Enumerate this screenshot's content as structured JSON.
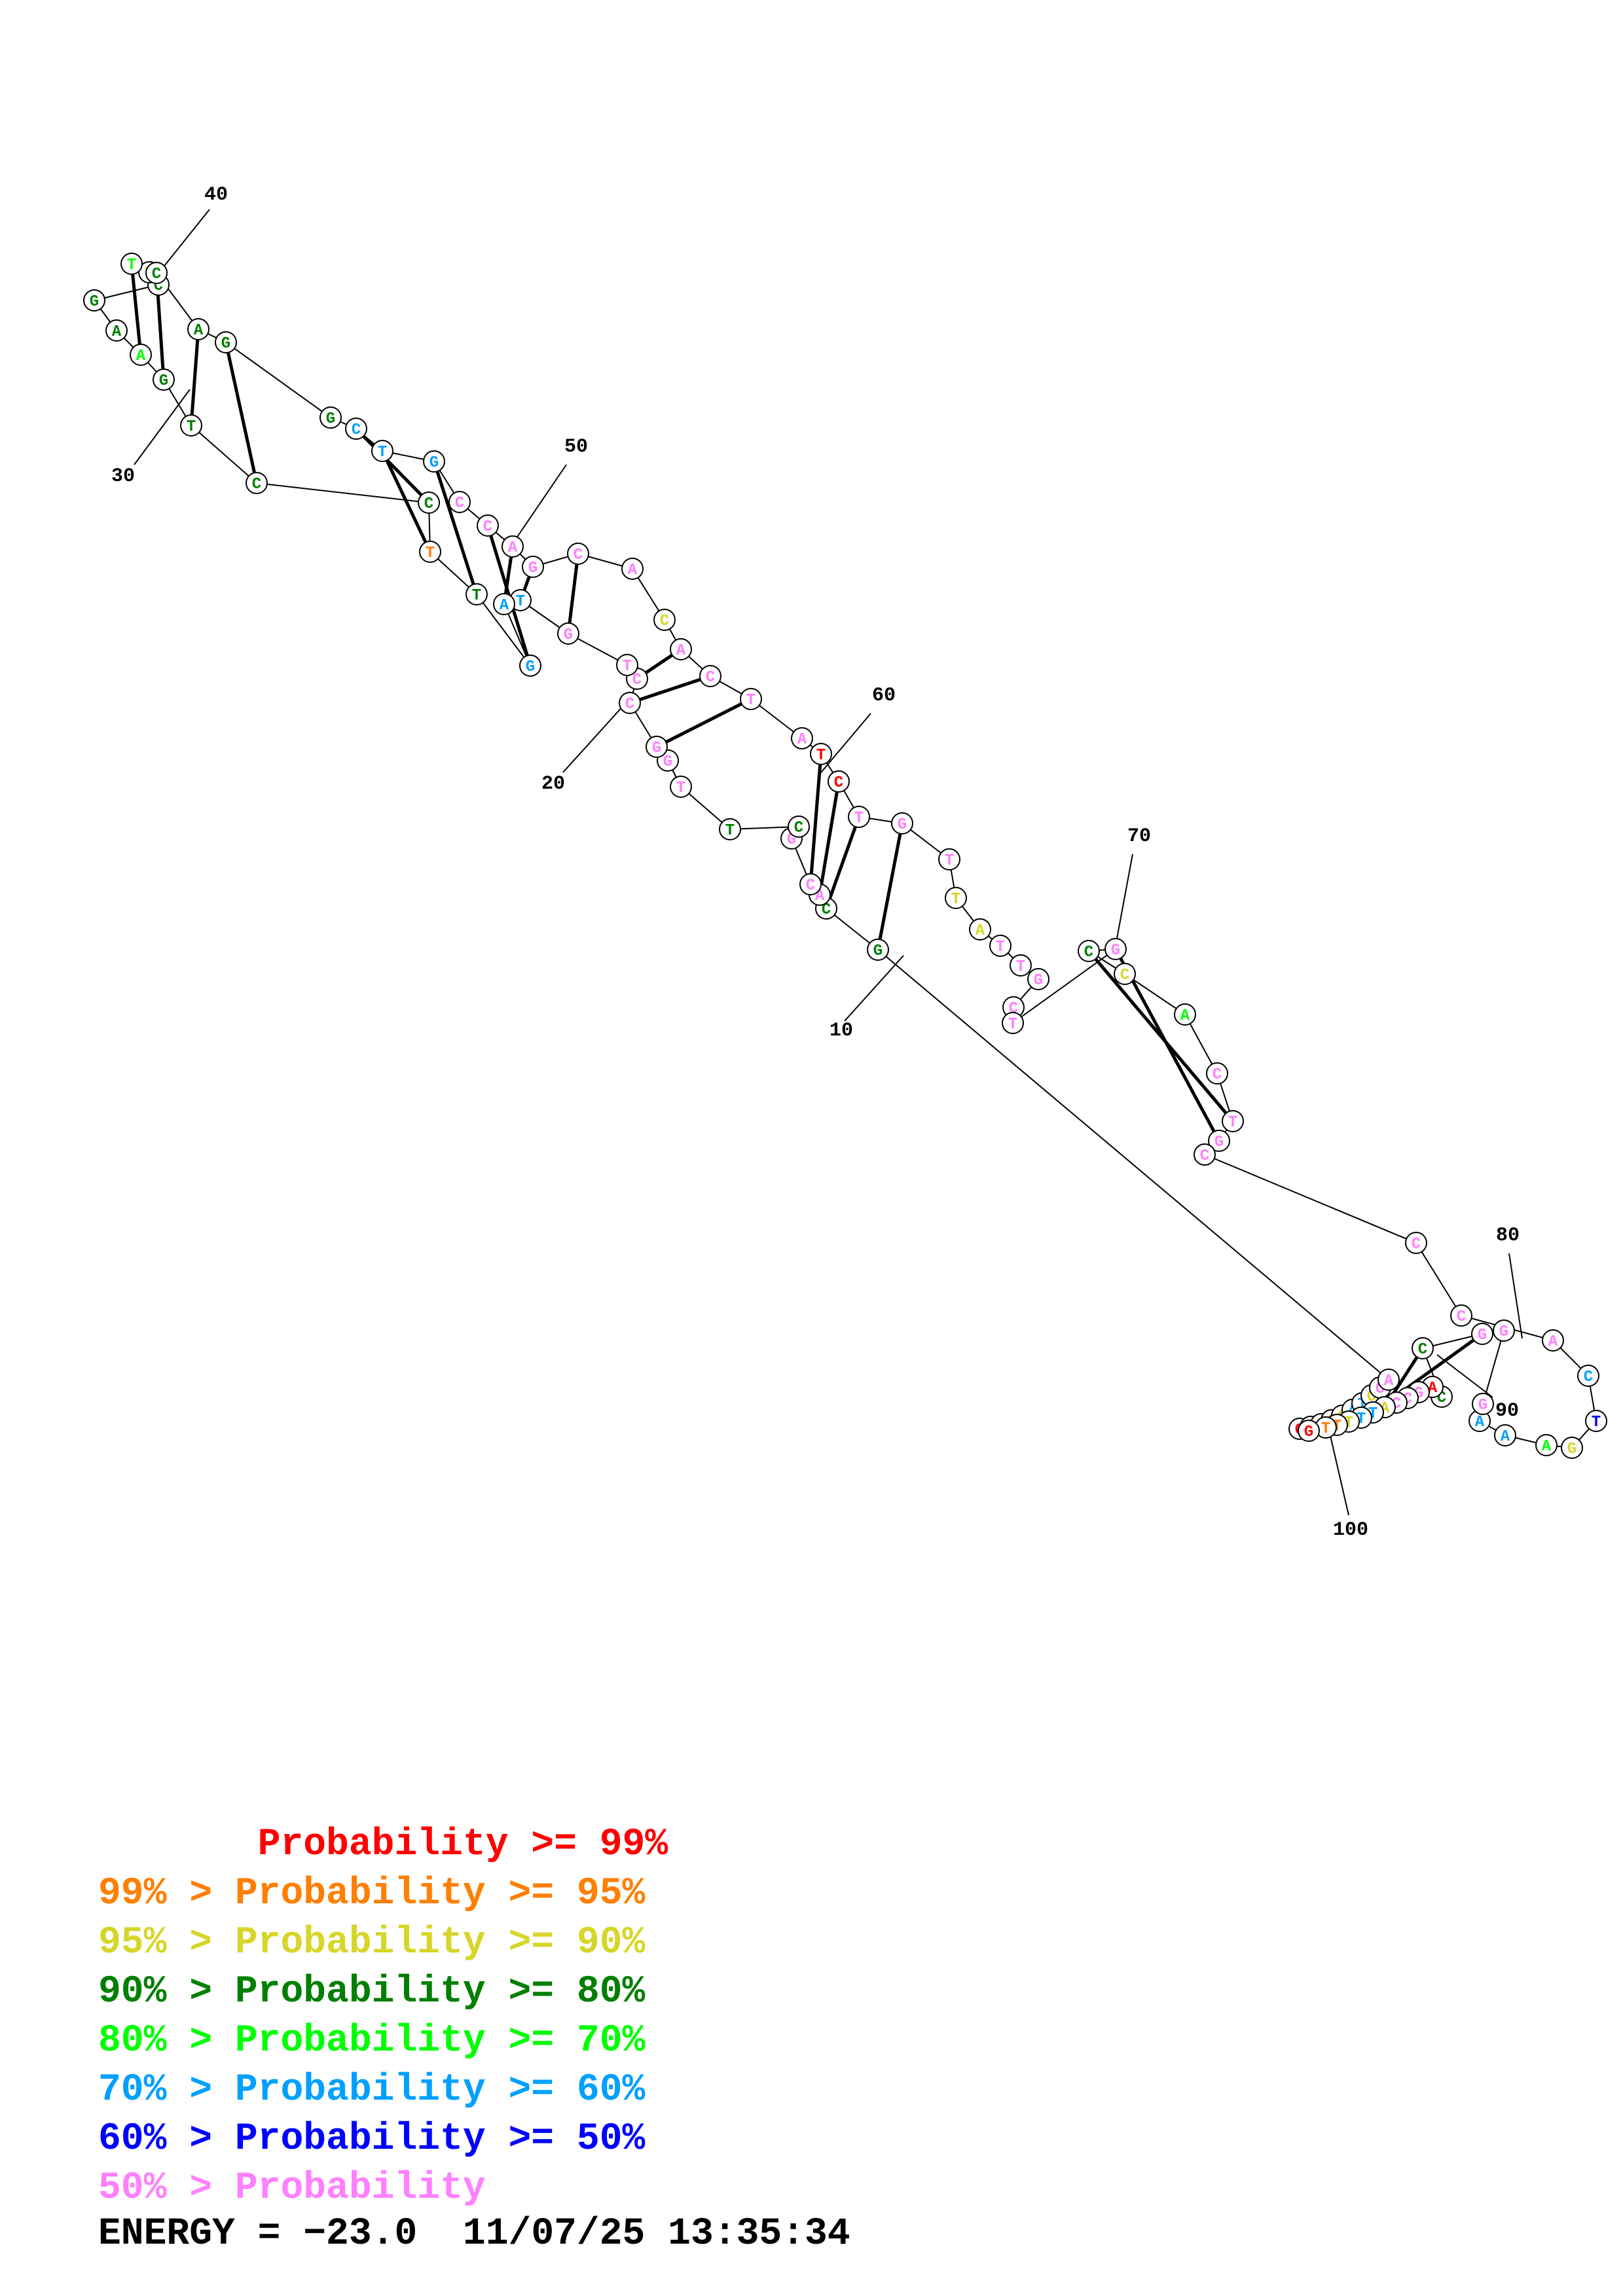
{
  "colors": {
    "p99": "#ff0000",
    "p95": "#ff7f00",
    "p90": "#d6d629",
    "p80": "#007f00",
    "p70": "#00ff00",
    "p60": "#00a0ff",
    "p50": "#0000ff",
    "low": "#ff80ff"
  },
  "position_labels": [
    "10",
    "20",
    "30",
    "40",
    "50",
    "60",
    "70",
    "80",
    "90",
    "100"
  ],
  "legend": [
    {
      "text": "       Probability >= 99%",
      "color_key": "p99"
    },
    {
      "text": "99% > Probability >= 95%",
      "color_key": "p95"
    },
    {
      "text": "95% > Probability >= 90%",
      "color_key": "p90"
    },
    {
      "text": "90% > Probability >= 80%",
      "color_key": "p80"
    },
    {
      "text": "80% > Probability >= 70%",
      "color_key": "p70"
    },
    {
      "text": "70% > Probability >= 60%",
      "color_key": "p60"
    },
    {
      "text": "60% > Probability >= 50%",
      "color_key": "p50"
    },
    {
      "text": "50% > Probability",
      "color_key": "low"
    }
  ],
  "footer": {
    "energy": "ENERGY = −23.0",
    "timestamp": "11/07/25 13:35:34"
  },
  "nucleotides": [
    {
      "base": "G",
      "p": "p99"
    },
    {
      "base": "G",
      "p": "p95"
    },
    {
      "base": "C",
      "p": "p90"
    },
    {
      "base": "C",
      "p": "p95"
    },
    {
      "base": "C",
      "p": "p90"
    },
    {
      "base": "A",
      "p": "p60"
    },
    {
      "base": "T",
      "p": "p60"
    },
    {
      "base": "C",
      "p": "p90"
    },
    {
      "base": "C",
      "p": "low"
    },
    {
      "base": "A",
      "p": "low"
    },
    {
      "base": "G",
      "p": "p80"
    },
    {
      "base": "C",
      "p": "p80"
    },
    {
      "base": "A",
      "p": "low"
    },
    {
      "base": "C",
      "p": "low"
    },
    {
      "base": "G",
      "p": "low"
    },
    {
      "base": "C",
      "p": "p80"
    },
    {
      "base": "T",
      "p": "p80"
    },
    {
      "base": "T",
      "p": "low"
    },
    {
      "base": "G",
      "p": "low"
    },
    {
      "base": "G",
      "p": "low"
    },
    {
      "base": "C",
      "p": "low"
    },
    {
      "base": "C",
      "p": "low"
    },
    {
      "base": "T",
      "p": "low"
    },
    {
      "base": "G",
      "p": "low"
    },
    {
      "base": "T",
      "p": "p60"
    },
    {
      "base": "A",
      "p": "p60"
    },
    {
      "base": "G",
      "p": "p60"
    },
    {
      "base": "T",
      "p": "p80"
    },
    {
      "base": "T",
      "p": "p95"
    },
    {
      "base": "C",
      "p": "p80"
    },
    {
      "base": "C",
      "p": "p80"
    },
    {
      "base": "T",
      "p": "p80"
    },
    {
      "base": "G",
      "p": "p80"
    },
    {
      "base": "A",
      "p": "p70"
    },
    {
      "base": "A",
      "p": "p80"
    },
    {
      "base": "G",
      "p": "p80"
    },
    {
      "base": "C",
      "p": "p80"
    },
    {
      "base": "T",
      "p": "p90"
    },
    {
      "base": "T",
      "p": "p70"
    },
    {
      "base": "C",
      "p": "p80"
    },
    {
      "base": "A",
      "p": "p80"
    },
    {
      "base": "G",
      "p": "p80"
    },
    {
      "base": "G",
      "p": "p80"
    },
    {
      "base": "C",
      "p": "p60"
    },
    {
      "base": "T",
      "p": "p60"
    },
    {
      "base": "G",
      "p": "p60"
    },
    {
      "base": "C",
      "p": "low"
    },
    {
      "base": "C",
      "p": "low"
    },
    {
      "base": "A",
      "p": "low"
    },
    {
      "base": "G",
      "p": "low"
    },
    {
      "base": "C",
      "p": "low"
    },
    {
      "base": "A",
      "p": "low"
    },
    {
      "base": "C",
      "p": "p90"
    },
    {
      "base": "A",
      "p": "low"
    },
    {
      "base": "C",
      "p": "low"
    },
    {
      "base": "T",
      "p": "low"
    },
    {
      "base": "A",
      "p": "low"
    },
    {
      "base": "T",
      "p": "p99"
    },
    {
      "base": "C",
      "p": "p99"
    },
    {
      "base": "T",
      "p": "low"
    },
    {
      "base": "G",
      "p": "low"
    },
    {
      "base": "T",
      "p": "low"
    },
    {
      "base": "T",
      "p": "p90"
    },
    {
      "base": "A",
      "p": "p90"
    },
    {
      "base": "T",
      "p": "low"
    },
    {
      "base": "T",
      "p": "low"
    },
    {
      "base": "G",
      "p": "low"
    },
    {
      "base": "C",
      "p": "low"
    },
    {
      "base": "T",
      "p": "low"
    },
    {
      "base": "G",
      "p": "low"
    },
    {
      "base": "C",
      "p": "p80"
    },
    {
      "base": "C",
      "p": "p90"
    },
    {
      "base": "A",
      "p": "p70"
    },
    {
      "base": "C",
      "p": "low"
    },
    {
      "base": "T",
      "p": "low"
    },
    {
      "base": "G",
      "p": "low"
    },
    {
      "base": "C",
      "p": "low"
    },
    {
      "base": "C",
      "p": "low"
    },
    {
      "base": "C",
      "p": "low"
    },
    {
      "base": "A",
      "p": "low"
    },
    {
      "base": "C",
      "p": "p60"
    },
    {
      "base": "T",
      "p": "p50"
    },
    {
      "base": "G",
      "p": "p90"
    },
    {
      "base": "A",
      "p": "p70"
    },
    {
      "base": "A",
      "p": "p60"
    },
    {
      "base": "A",
      "p": "p60"
    },
    {
      "base": "G",
      "p": "low"
    },
    {
      "base": "G",
      "p": "low"
    },
    {
      "base": "G",
      "p": "low"
    },
    {
      "base": "C",
      "p": "p80"
    },
    {
      "base": "C",
      "p": "p80"
    },
    {
      "base": "A",
      "p": "p99"
    },
    {
      "base": "G",
      "p": "low"
    },
    {
      "base": "C",
      "p": "low"
    },
    {
      "base": "C",
      "p": "low"
    },
    {
      "base": "A",
      "p": "p90"
    },
    {
      "base": "T",
      "p": "p60"
    },
    {
      "base": "T",
      "p": "p60"
    },
    {
      "base": "T",
      "p": "p90"
    },
    {
      "base": "T",
      "p": "p95"
    },
    {
      "base": "T",
      "p": "p95"
    },
    {
      "base": "G",
      "p": "p99"
    }
  ]
}
